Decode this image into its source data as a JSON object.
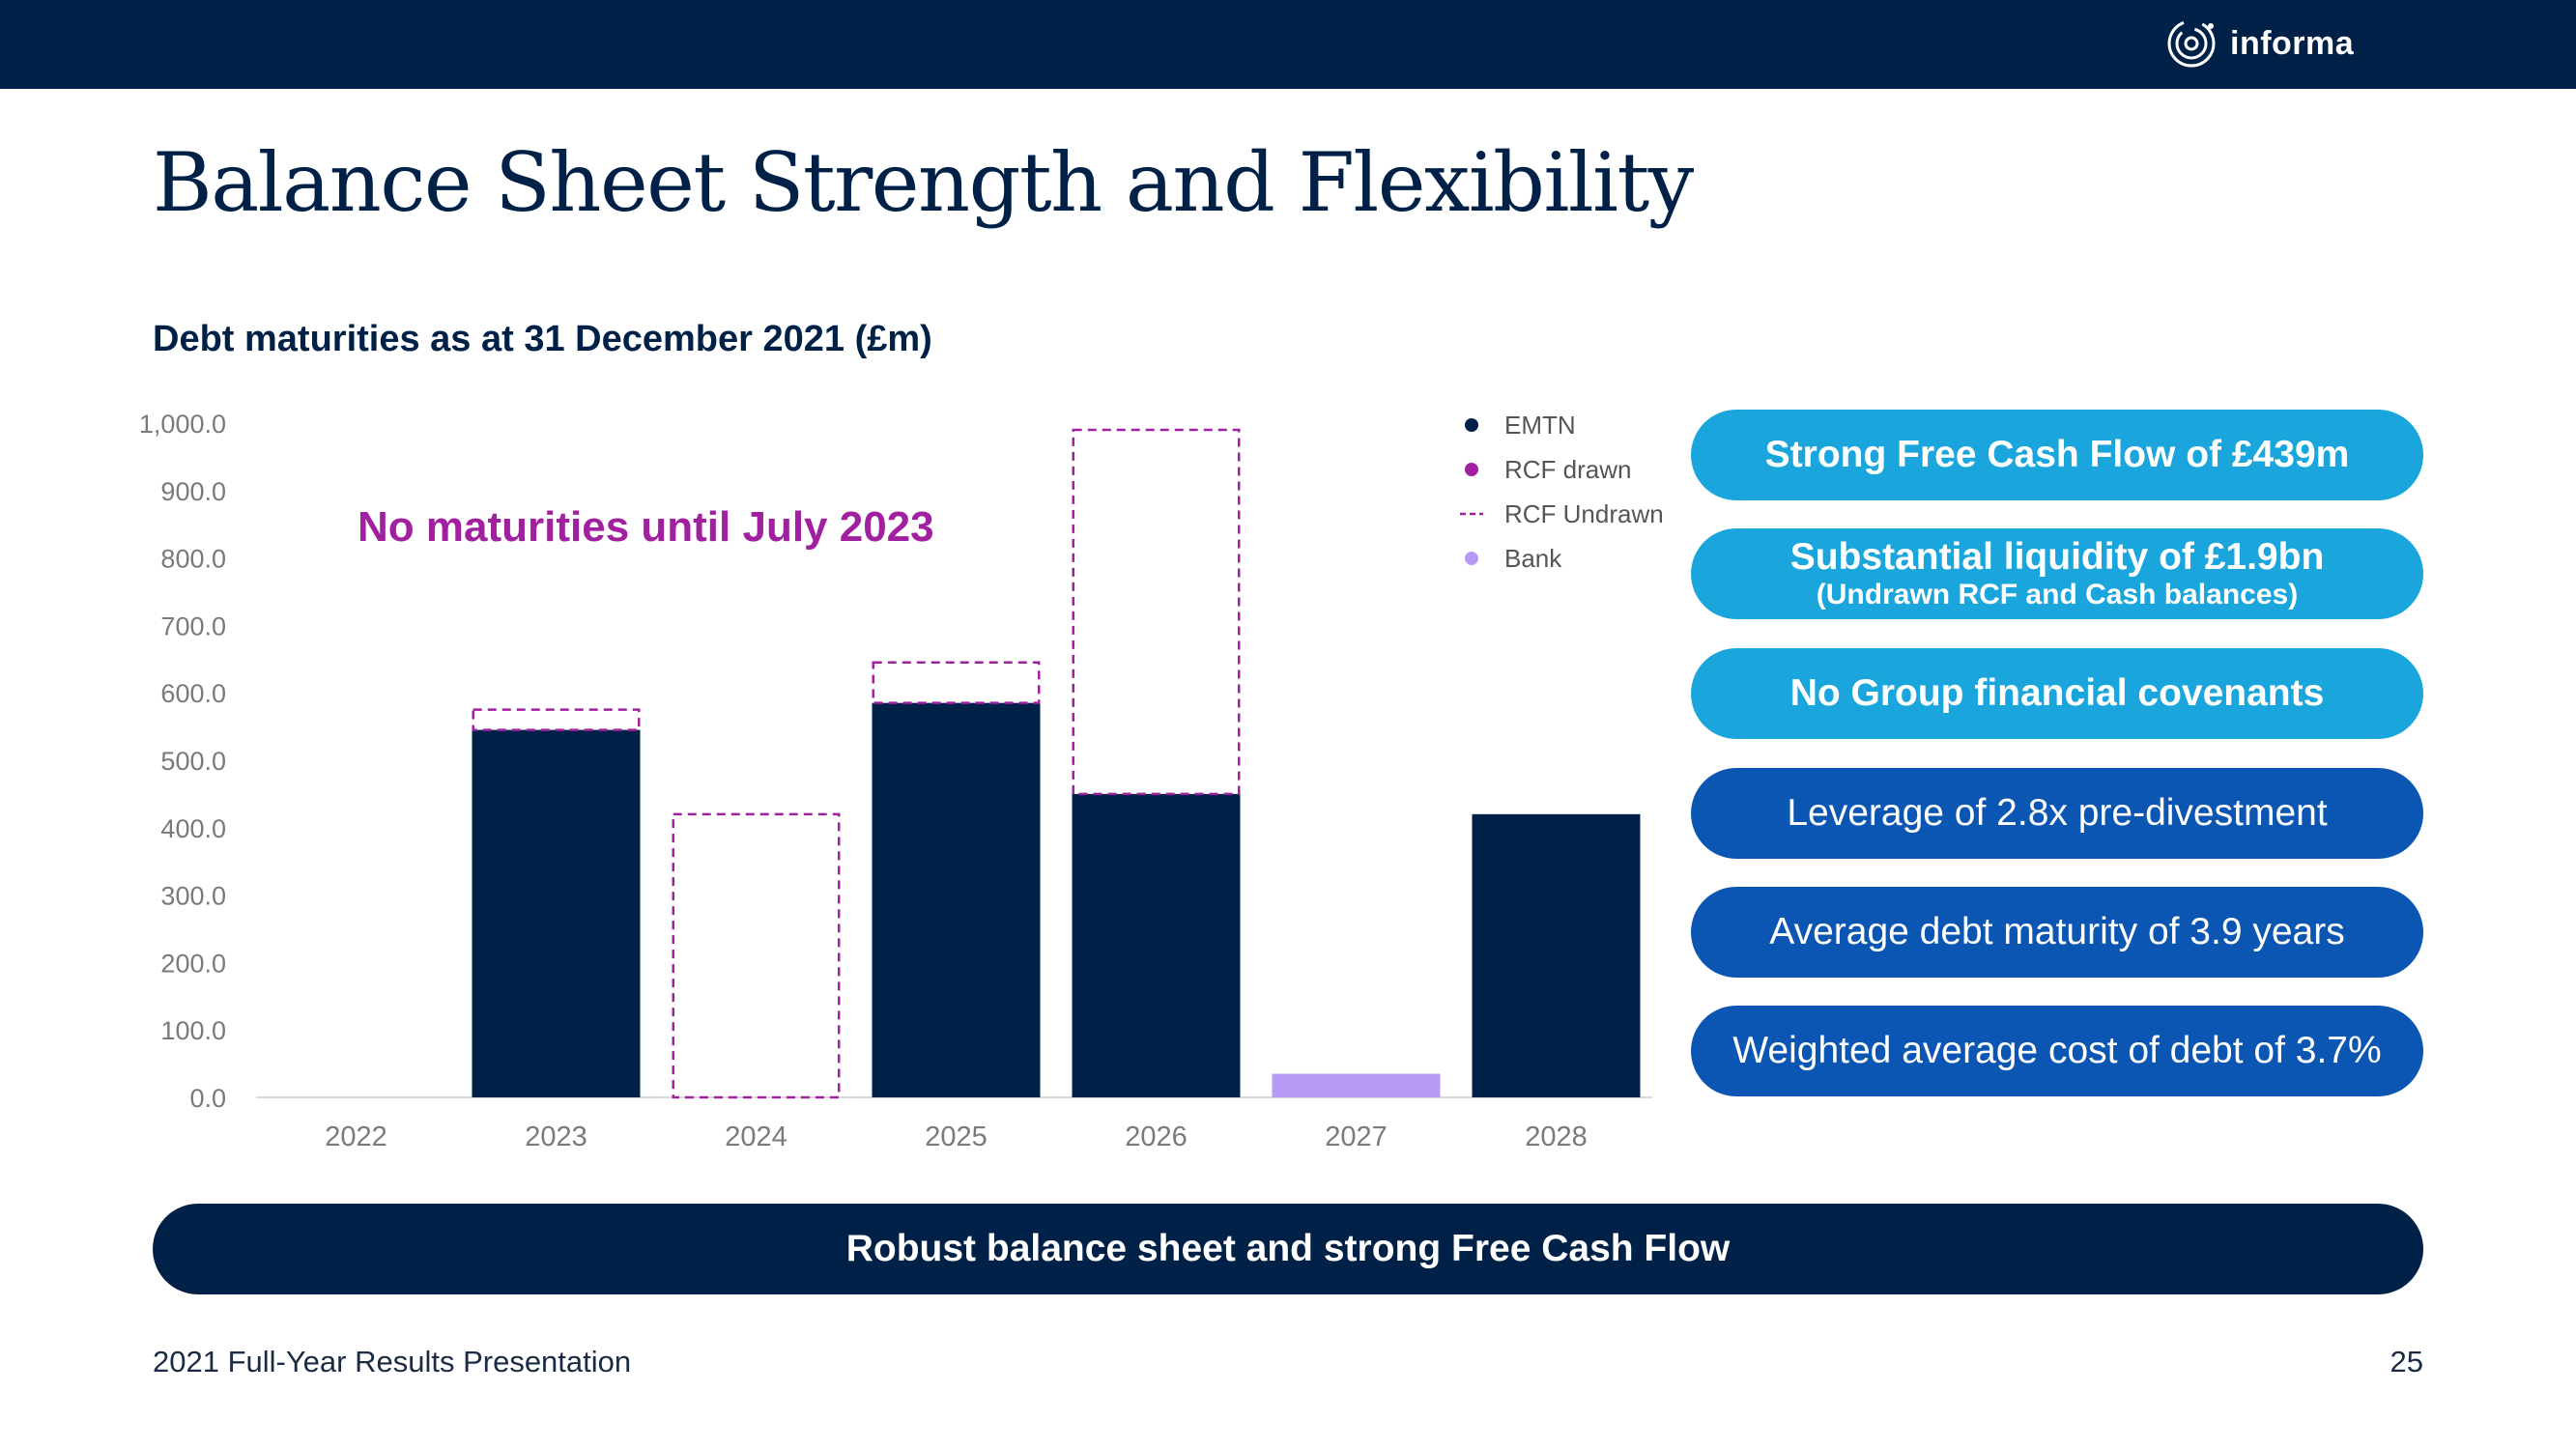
{
  "header": {
    "brand": "informa"
  },
  "page_title": "Balance Sheet Strength and Flexibility",
  "chart_data": {
    "type": "bar",
    "title": "Debt maturities as at 31 December 2021 (£m)",
    "annotation": "No maturities until July 2023",
    "categories": [
      "2022",
      "2023",
      "2024",
      "2025",
      "2026",
      "2027",
      "2028"
    ],
    "series": [
      {
        "name": "EMTN",
        "values": [
          0,
          545,
          0,
          585,
          450,
          0,
          420
        ],
        "color": "#002147",
        "style": "solid"
      },
      {
        "name": "RCF drawn",
        "values": [
          0,
          0,
          0,
          0,
          0,
          0,
          0
        ],
        "color": "#a020a0",
        "style": "solid"
      },
      {
        "name": "RCF Undrawn",
        "values": [
          0,
          30,
          420,
          60,
          540,
          0,
          0
        ],
        "color": "#a020a0",
        "style": "dashed"
      },
      {
        "name": "Bank",
        "values": [
          0,
          0,
          0,
          0,
          0,
          35,
          0
        ],
        "color": "#b69af5",
        "style": "solid"
      }
    ],
    "ylim": [
      0,
      1000
    ],
    "yticks": [
      "0.0",
      "100.0",
      "200.0",
      "300.0",
      "400.0",
      "500.0",
      "600.0",
      "700.0",
      "800.0",
      "900.0",
      "1,000.0"
    ],
    "legend_position": "top-right",
    "grid": false
  },
  "highlights": [
    {
      "text": "Strong Free Cash Flow of £439m",
      "sub": ""
    },
    {
      "text": "Substantial liquidity of £1.9bn",
      "sub": "(Undrawn RCF and Cash balances)"
    },
    {
      "text": "No Group financial covenants",
      "sub": ""
    },
    {
      "text": "Leverage of 2.8x pre-divestment",
      "sub": ""
    },
    {
      "text": "Average debt maturity of 3.9 years",
      "sub": ""
    },
    {
      "text": "Weighted average cost of debt of 3.7%",
      "sub": ""
    }
  ],
  "banner": "Robust balance sheet and strong Free Cash Flow",
  "footer": {
    "left": "2021 Full-Year Results Presentation",
    "page_number": "25"
  },
  "colors": {
    "navy": "#002147",
    "light_blue": "#1aa6dd",
    "dark_blue": "#0b56b3",
    "magenta": "#a020a0"
  }
}
